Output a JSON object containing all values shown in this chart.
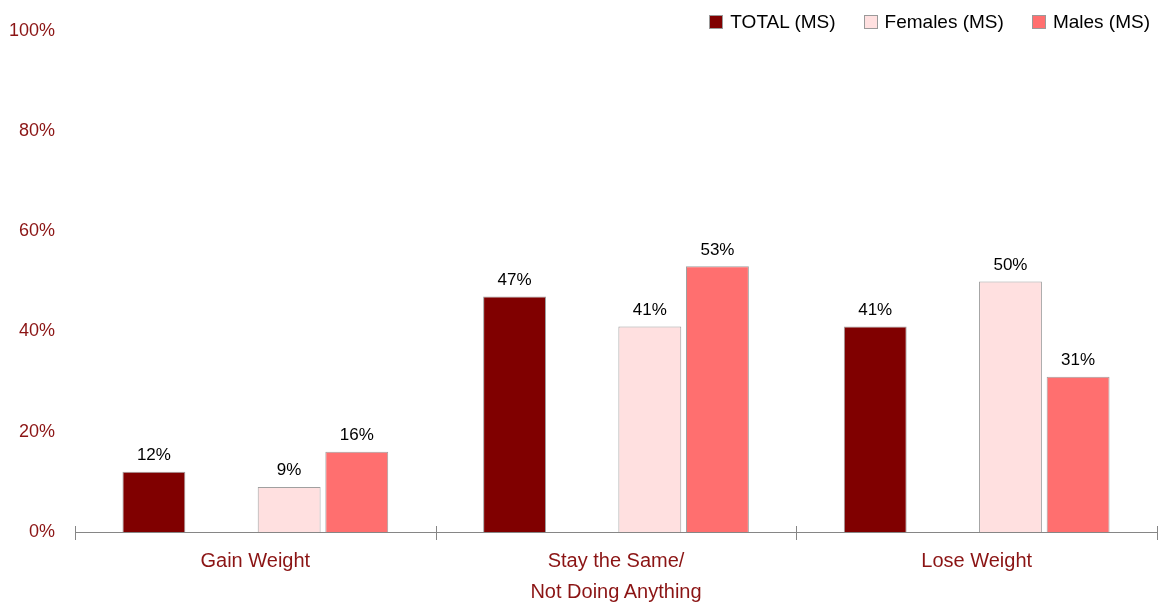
{
  "chart_data": {
    "type": "bar",
    "categories": [
      "Gain Weight",
      "Stay the Same/\nNot Doing Anything",
      "Lose Weight"
    ],
    "series": [
      {
        "name": "TOTAL (MS)",
        "color": "#800000",
        "values": [
          12,
          47,
          41
        ],
        "value_labels": [
          "12%",
          "47%",
          "41%"
        ]
      },
      {
        "name": "Females (MS)",
        "color": "#ffe0e0",
        "values": [
          9,
          41,
          50
        ],
        "value_labels": [
          "9%",
          "41%",
          "50%"
        ]
      },
      {
        "name": "Males (MS)",
        "color": "#ff6f6f",
        "values": [
          16,
          53,
          31
        ],
        "value_labels": [
          "16%",
          "53%",
          "31%"
        ]
      }
    ],
    "ylim": [
      0,
      100
    ],
    "yticks": [
      {
        "value": 0,
        "label": "0%"
      },
      {
        "value": 20,
        "label": "20%"
      },
      {
        "value": 40,
        "label": "40%"
      },
      {
        "value": 60,
        "label": "60%"
      },
      {
        "value": 80,
        "label": "80%"
      },
      {
        "value": 100,
        "label": "100%"
      }
    ],
    "grid": false,
    "legend": "top right"
  }
}
